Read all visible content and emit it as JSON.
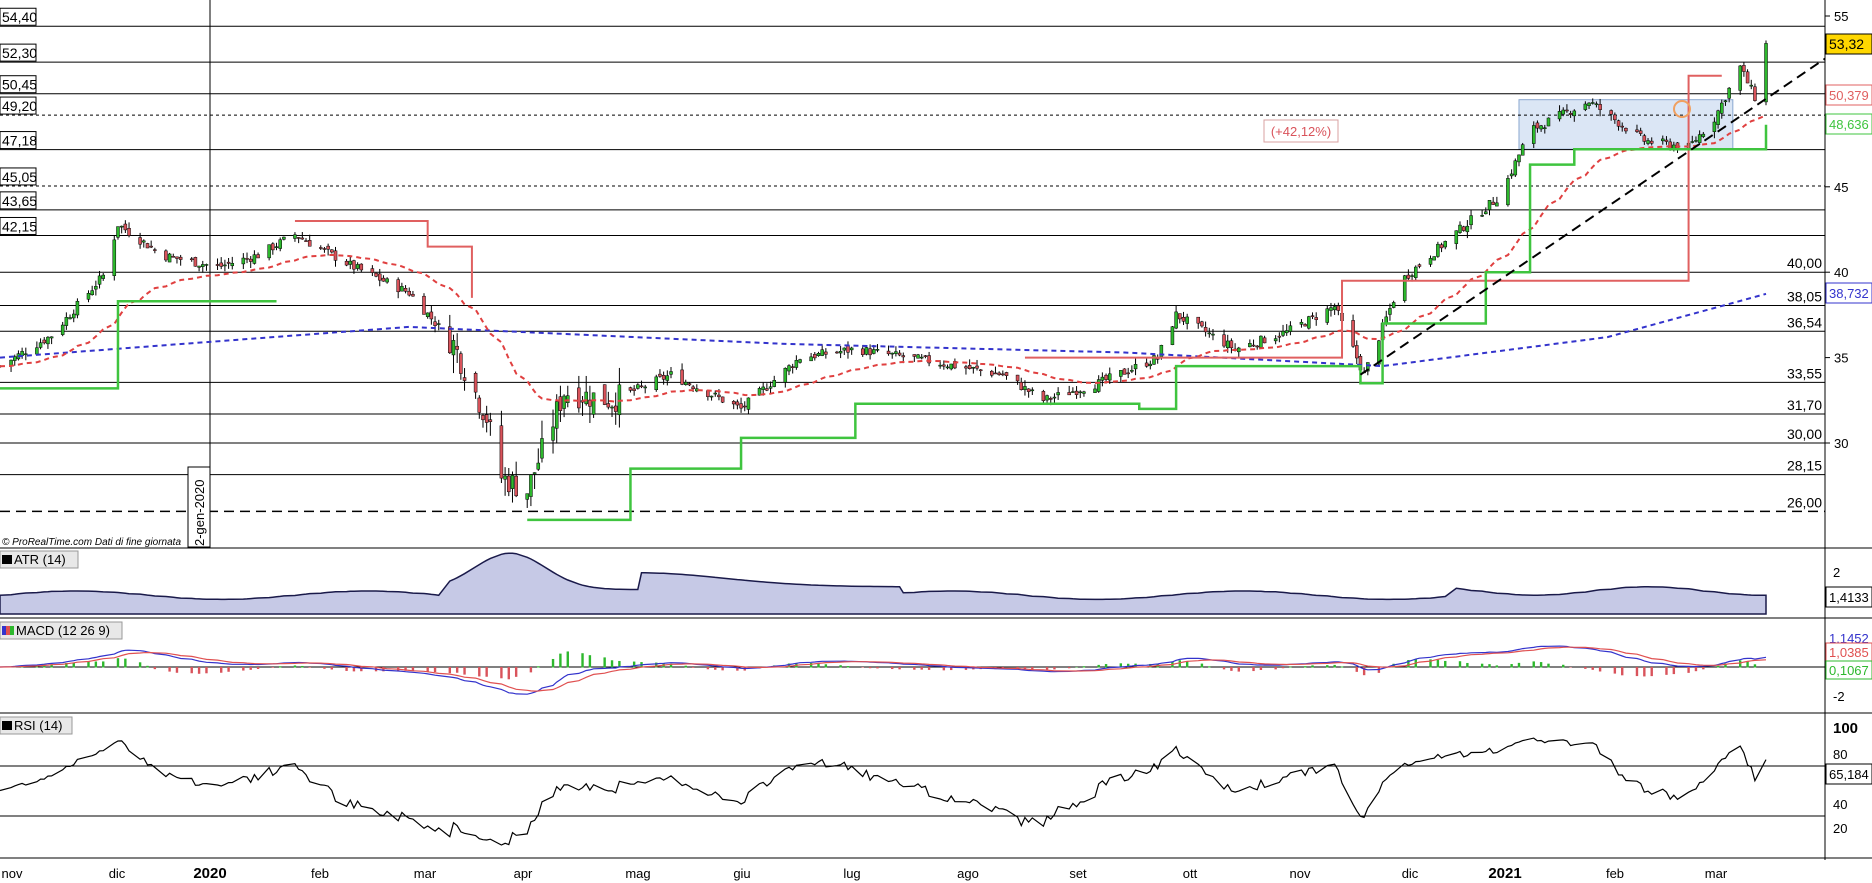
{
  "source_note": "© ProRealTime.com  Dati di fine giornata",
  "vertical_marker_label": "2-gen-2020",
  "annotation_percent": "(+42,12%)",
  "x_axis_labels": [
    "nov",
    "dic",
    "2020",
    "feb",
    "mar",
    "apr",
    "mag",
    "giu",
    "lug",
    "ago",
    "set",
    "ott",
    "nov",
    "dic",
    "2021",
    "feb",
    "mar"
  ],
  "price_axis_ticks": [
    "55",
    "45",
    "40",
    "35",
    "30"
  ],
  "badges": {
    "last_price": "53,32",
    "red_trailing": "50,379",
    "green_trailing": "48,636",
    "blue_ma": "38,732",
    "atr": "1,4133",
    "macd_line": "1,1452",
    "macd_signal": "1,0385",
    "macd_hist": "0,1067",
    "rsi": "65,184"
  },
  "panels": {
    "atr": {
      "label": "ATR (14)",
      "ticks": [
        "2"
      ]
    },
    "macd": {
      "label": "MACD (12 26 9)",
      "ticks": [
        "-2"
      ]
    },
    "rsi": {
      "label": "RSI (14)",
      "ticks": [
        "100",
        "80",
        "40",
        "20"
      ]
    }
  },
  "colors": {
    "bull_candle": "#2db82d",
    "bear_candle": "#d9535b",
    "red_line": "#e06060",
    "green_line": "#3fc43f",
    "blue_ma": "#3333cc",
    "rect_fill": "#dbe6f5",
    "last_price_badge": "#ffd700"
  },
  "chart_data": {
    "type": "candlestick",
    "x_range": [
      "2019-11-01",
      "2021-03-10"
    ],
    "y_range": [
      24,
      56
    ],
    "level_lines": [
      {
        "value": 54.4,
        "label": "54,40",
        "side": "left",
        "style": "solid"
      },
      {
        "value": 52.3,
        "label": "52,30",
        "side": "left",
        "style": "solid"
      },
      {
        "value": 50.45,
        "label": "50,45",
        "side": "left",
        "style": "solid"
      },
      {
        "value": 49.2,
        "label": "49,20",
        "side": "left",
        "style": "dotted"
      },
      {
        "value": 47.18,
        "label": "47,18",
        "side": "left",
        "style": "solid"
      },
      {
        "value": 45.05,
        "label": "45,05",
        "side": "left",
        "style": "dotted"
      },
      {
        "value": 43.65,
        "label": "43,65",
        "side": "left",
        "style": "solid"
      },
      {
        "value": 42.15,
        "label": "42,15",
        "side": "left",
        "style": "solid"
      },
      {
        "value": 40.0,
        "label": "40,00",
        "side": "right",
        "style": "solid"
      },
      {
        "value": 38.05,
        "label": "38,05",
        "side": "right",
        "style": "solid"
      },
      {
        "value": 36.54,
        "label": "36,54",
        "side": "right",
        "style": "solid"
      },
      {
        "value": 33.55,
        "label": "33,55",
        "side": "right",
        "style": "solid"
      },
      {
        "value": 31.7,
        "label": "31,70",
        "side": "right",
        "style": "solid"
      },
      {
        "value": 30.0,
        "label": "30,00",
        "side": "right",
        "style": "solid"
      },
      {
        "value": 28.15,
        "label": "28,15",
        "side": "right",
        "style": "solid"
      },
      {
        "value": 26.0,
        "label": "26,00",
        "side": "right",
        "style": "dashed"
      }
    ],
    "close_series": [
      [
        "2019-11-01",
        34.5
      ],
      [
        "2019-11-15",
        36.3
      ],
      [
        "2019-11-29",
        39.8
      ],
      [
        "2019-12-03",
        42.8
      ],
      [
        "2019-12-15",
        41.0
      ],
      [
        "2019-12-30",
        40.3
      ],
      [
        "2020-01-10",
        41.0
      ],
      [
        "2020-01-20",
        42.2
      ],
      [
        "2020-02-05",
        40.3
      ],
      [
        "2020-02-20",
        38.8
      ],
      [
        "2020-03-03",
        35.8
      ],
      [
        "2020-03-12",
        31.5
      ],
      [
        "2020-03-16",
        28.0
      ],
      [
        "2020-03-23",
        27.2
      ],
      [
        "2020-04-02",
        33.0
      ],
      [
        "2020-04-15",
        32.5
      ],
      [
        "2020-05-01",
        34.0
      ],
      [
        "2020-05-20",
        32.0
      ],
      [
        "2020-06-05",
        35.0
      ],
      [
        "2020-06-20",
        35.5
      ],
      [
        "2020-07-10",
        34.8
      ],
      [
        "2020-07-30",
        34.0
      ],
      [
        "2020-08-10",
        32.5
      ],
      [
        "2020-08-25",
        33.5
      ],
      [
        "2020-09-10",
        35.0
      ],
      [
        "2020-09-15",
        37.5
      ],
      [
        "2020-10-01",
        35.5
      ],
      [
        "2020-10-15",
        36.5
      ],
      [
        "2020-10-28",
        38.0
      ],
      [
        "2020-11-05",
        34.0
      ],
      [
        "2020-11-15",
        39.5
      ],
      [
        "2020-12-01",
        42.5
      ],
      [
        "2020-12-12",
        44.5
      ],
      [
        "2020-12-20",
        48.3
      ],
      [
        "2021-01-05",
        50.0
      ],
      [
        "2021-01-20",
        47.7
      ],
      [
        "2021-02-01",
        47.3
      ],
      [
        "2021-02-08",
        49.0
      ],
      [
        "2021-02-15",
        52.0
      ],
      [
        "2021-02-20",
        49.8
      ],
      [
        "2021-02-22",
        53.32
      ]
    ],
    "red_trailing_stop": [
      [
        "2019-12-05",
        null
      ],
      [
        "2020-01-20",
        43.0
      ],
      [
        "2020-02-10",
        43.0
      ],
      [
        "2020-02-25",
        41.5
      ],
      [
        "2020-03-08",
        38.5
      ],
      [
        "2020-03-25",
        null
      ],
      [
        "2020-08-05",
        35.0
      ],
      [
        "2020-08-25",
        35.0
      ],
      [
        "2020-10-30",
        39.5
      ],
      [
        "2021-02-01",
        51.5
      ],
      [
        "2021-02-10",
        51.5
      ]
    ],
    "green_trailing_stop": [
      [
        "2019-11-01",
        33.2
      ],
      [
        "2019-12-03",
        38.3
      ],
      [
        "2020-01-15",
        38.3
      ],
      [
        "2020-03-20",
        null
      ],
      [
        "2020-03-23",
        25.5
      ],
      [
        "2020-04-20",
        28.5
      ],
      [
        "2020-05-20",
        30.3
      ],
      [
        "2020-06-20",
        32.3
      ],
      [
        "2020-08-25",
        32.3
      ],
      [
        "2020-09-05",
        32.0
      ],
      [
        "2020-09-15",
        34.5
      ],
      [
        "2020-11-04",
        33.5
      ],
      [
        "2020-11-10",
        37.0
      ],
      [
        "2020-12-08",
        40.0
      ],
      [
        "2020-12-20",
        46.3
      ],
      [
        "2021-01-01",
        47.2
      ],
      [
        "2021-02-22",
        48.636
      ]
    ],
    "ma_200_blue": [
      [
        "2019-11-01",
        35.0
      ],
      [
        "2020-02-20",
        36.8
      ],
      [
        "2020-06-01",
        35.8
      ],
      [
        "2020-09-01",
        35.3
      ],
      [
        "2020-11-10",
        34.5
      ],
      [
        "2021-01-10",
        36.2
      ],
      [
        "2021-02-22",
        38.732
      ]
    ],
    "ema_red_dashed_trend": "follows price with lag",
    "trendline_dashed_black": {
      "from": [
        "2020-11-04",
        34.0
      ],
      "to": [
        "2021-03-10",
        52.5
      ]
    },
    "consolidation_box": {
      "x": [
        "2020-12-17",
        "2021-02-13"
      ],
      "y": [
        47.2,
        50.1
      ]
    }
  }
}
